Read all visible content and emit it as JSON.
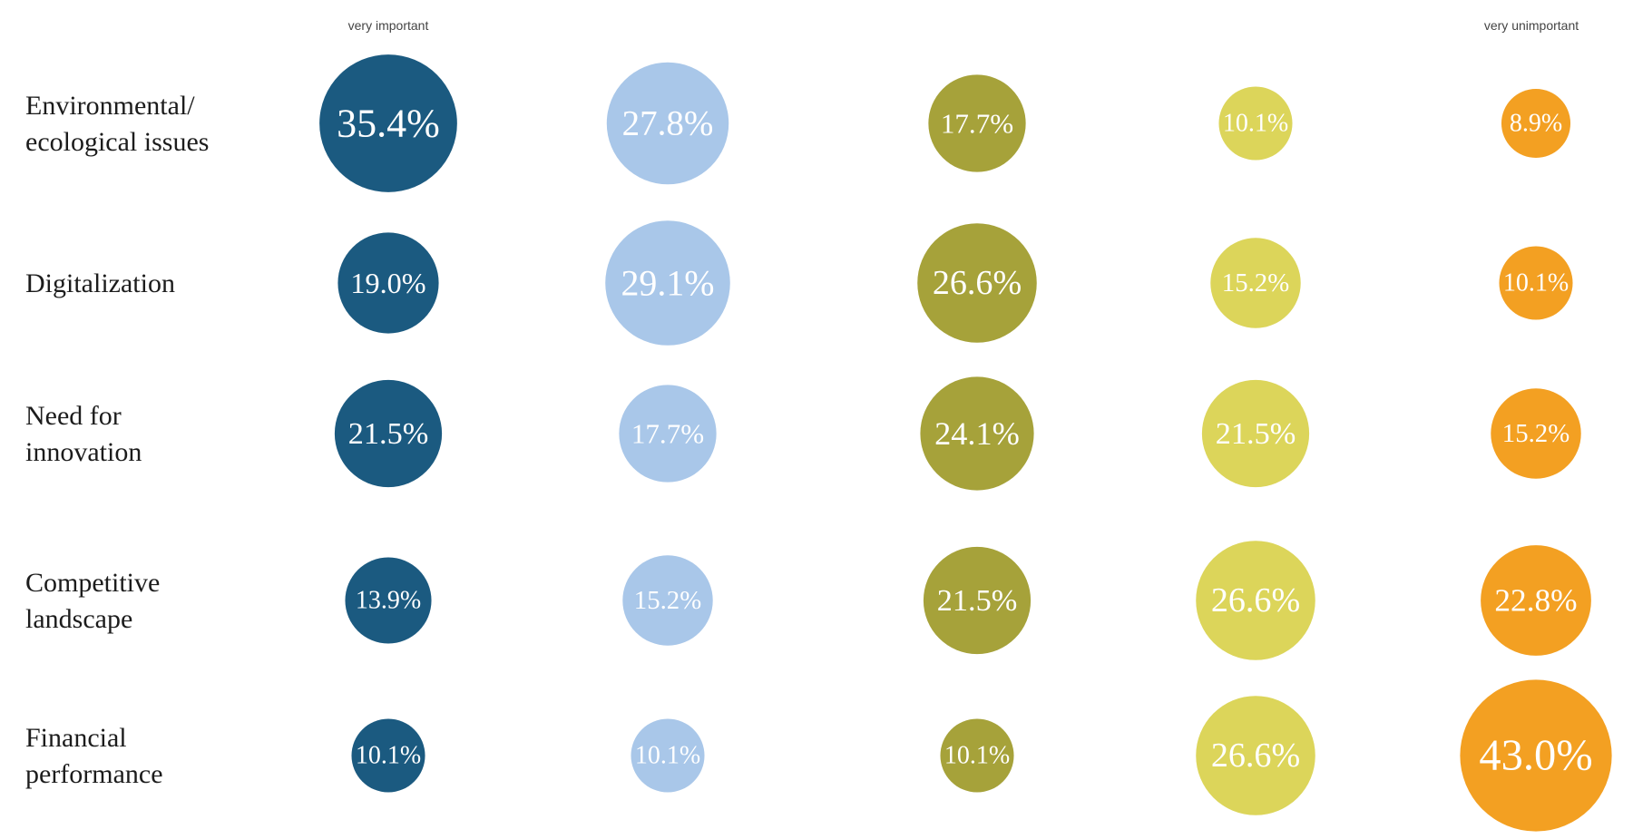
{
  "chart_data": {
    "type": "bubble-matrix",
    "scale_labels": {
      "left": "very important",
      "right": "very unimportant"
    },
    "rows": [
      {
        "label_lines": [
          "Environmental/",
          "ecological issues"
        ],
        "values": [
          35.4,
          27.8,
          17.7,
          10.1,
          8.9
        ]
      },
      {
        "label_lines": [
          "Digitalization"
        ],
        "values": [
          19.0,
          29.1,
          26.6,
          15.2,
          10.1
        ]
      },
      {
        "label_lines": [
          "Need for",
          "innovation"
        ],
        "values": [
          21.5,
          17.7,
          24.1,
          21.5,
          15.2
        ]
      },
      {
        "label_lines": [
          "Competitive",
          "landscape"
        ],
        "values": [
          13.9,
          15.2,
          21.5,
          26.6,
          22.8
        ]
      },
      {
        "label_lines": [
          "Financial",
          "performance"
        ],
        "values": [
          10.1,
          10.1,
          10.1,
          26.6,
          43.0
        ]
      }
    ],
    "column_colors": [
      "#1b5a80",
      "#a9c7e9",
      "#a6a23a",
      "#dcd55a",
      "#f3a022"
    ],
    "value_format": "percent-1-decimal"
  }
}
